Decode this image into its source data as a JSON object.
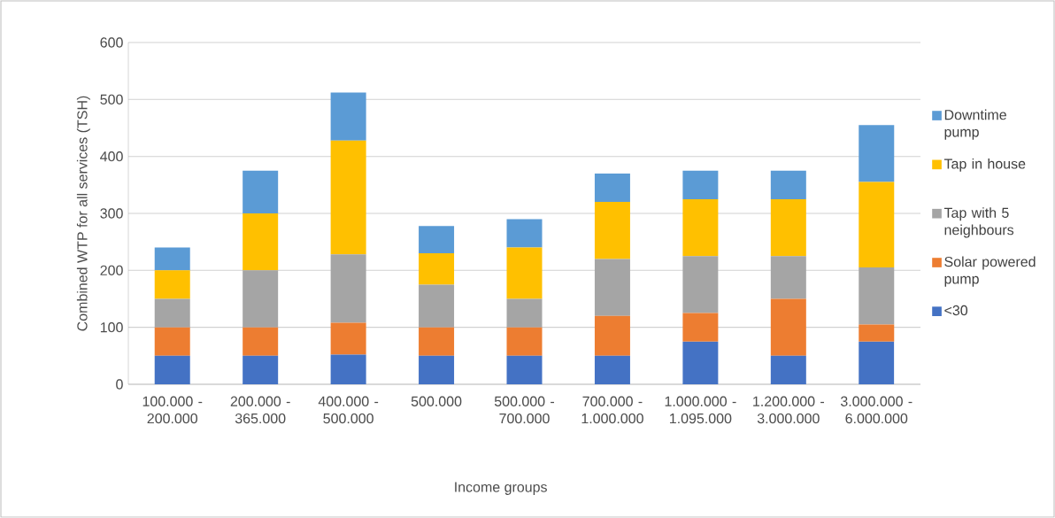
{
  "chart_data": {
    "type": "bar",
    "stacked": true,
    "xlabel": "Income groups",
    "ylabel": "Combined WTP for all services (TSH)",
    "categories": [
      "100.000 - 200.000",
      "200.000 - 365.000",
      "400.000 - 500.000",
      "500.000",
      "500.000 - 700.000",
      "700.000 - 1.000.000",
      "1.000.000 - 1.095.000",
      "1.200.000 - 3.000.000",
      "3.000.000 - 6.000.000"
    ],
    "series": [
      {
        "name": "<30",
        "color": "#4472c4",
        "values": [
          50,
          50,
          52,
          50,
          50,
          50,
          75,
          50,
          75
        ]
      },
      {
        "name": "Solar powered pump",
        "color": "#ed7d31",
        "values": [
          50,
          50,
          56,
          50,
          50,
          70,
          50,
          100,
          30
        ]
      },
      {
        "name": "Tap with 5 neighbours",
        "color": "#a5a5a5",
        "values": [
          50,
          100,
          120,
          75,
          50,
          100,
          100,
          75,
          100
        ]
      },
      {
        "name": "Tap in house",
        "color": "#ffc000",
        "values": [
          50,
          100,
          200,
          55,
          90,
          100,
          100,
          100,
          150
        ]
      },
      {
        "name": "Downtime pump",
        "color": "#5b9bd5",
        "values": [
          40,
          75,
          84,
          48,
          50,
          50,
          50,
          50,
          100
        ]
      }
    ],
    "ylim": [
      0,
      600
    ],
    "yticks": [
      0,
      100,
      200,
      300,
      400,
      500,
      600
    ],
    "grid": "y",
    "legend": "right"
  }
}
